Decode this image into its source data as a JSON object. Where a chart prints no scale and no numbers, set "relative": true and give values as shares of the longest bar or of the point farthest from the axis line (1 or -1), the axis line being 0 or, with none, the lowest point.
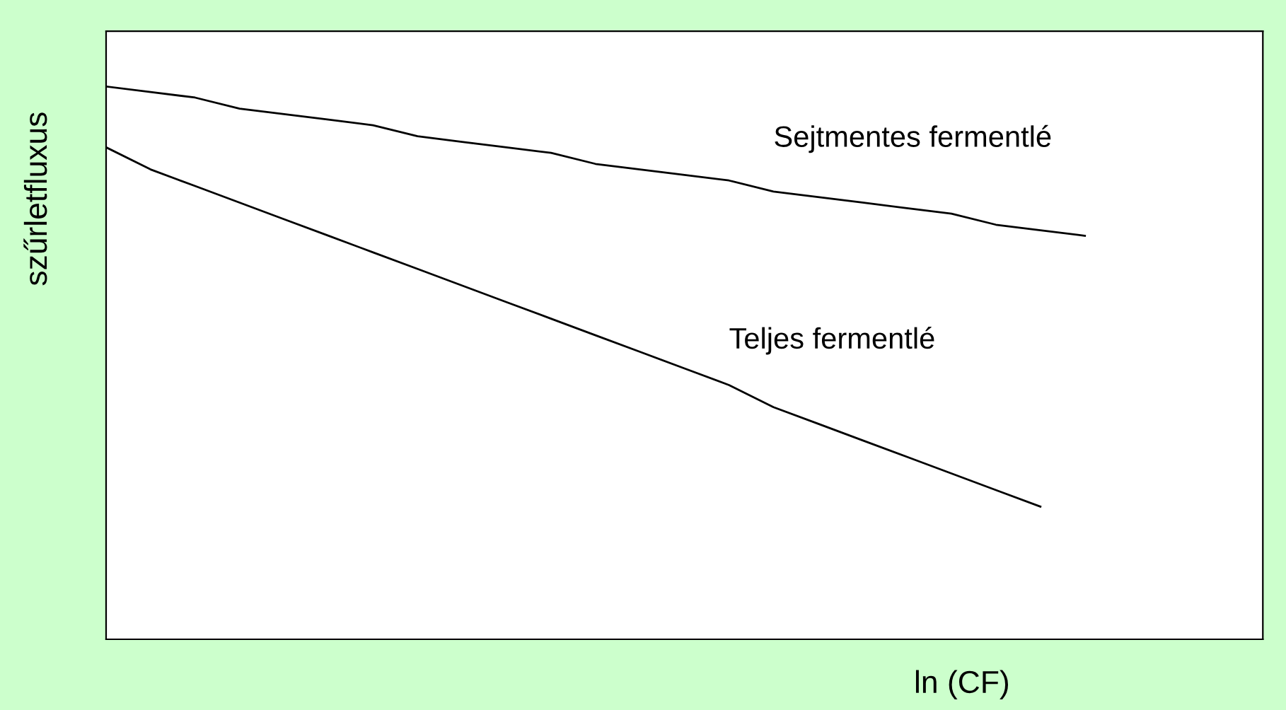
{
  "chart_data": {
    "type": "line",
    "relative": true,
    "xlabel": "ln (CF)",
    "ylabel": "szűrletfluxus",
    "categories": [
      null,
      null,
      null,
      null,
      null,
      null,
      null,
      null,
      null,
      null,
      null,
      null,
      null,
      null,
      null,
      null,
      null,
      null,
      null,
      null,
      null,
      null,
      null,
      null,
      null,
      null,
      null
    ],
    "series": [
      {
        "name": "Sejtmentes fermentlé",
        "color": "#000000",
        "values": [
          1.0,
          0.99,
          0.98,
          0.96,
          0.95,
          0.94,
          0.93,
          0.91,
          0.9,
          0.89,
          0.88,
          0.86,
          0.85,
          0.84,
          0.83,
          0.81,
          0.8,
          0.79,
          0.78,
          0.77,
          0.75,
          0.74,
          0.73,
          null,
          null,
          null,
          null
        ]
      },
      {
        "name": "Teljes fermentlé",
        "color": "#000000",
        "values": [
          0.89,
          0.85,
          0.82,
          0.79,
          0.76,
          0.73,
          0.7,
          0.67,
          0.64,
          0.61,
          0.58,
          0.55,
          0.52,
          0.49,
          0.46,
          0.42,
          0.39,
          0.36,
          0.33,
          0.3,
          0.27,
          0.24,
          null,
          null,
          null,
          null,
          null
        ]
      }
    ],
    "legend": false,
    "grid": false,
    "marker": "none",
    "line_style": "solid"
  }
}
